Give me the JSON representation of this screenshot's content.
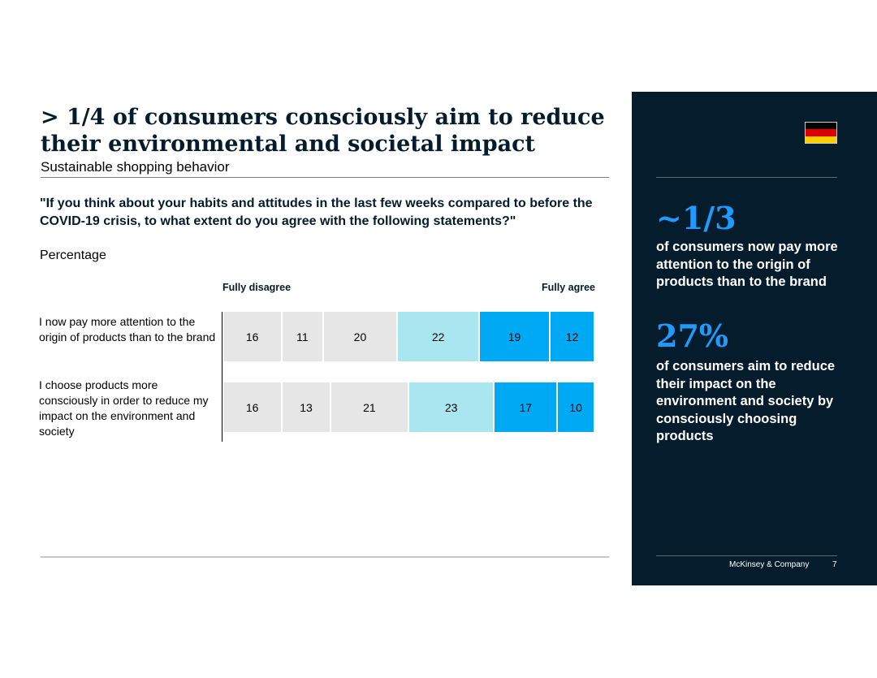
{
  "header": {
    "title": "> 1/4 of consumers consciously aim to reduce their environmental and societal impact",
    "subtitle": "Sustainable shopping behavior"
  },
  "question": "\"If you think about your habits and attitudes in the last few weeks compared to before the COVID-19 crisis, to what extent do you agree with the following statements?\"",
  "unit": "Percentage",
  "scale": {
    "left": "Fully disagree",
    "right": "Fully agree"
  },
  "chart_data": {
    "type": "bar",
    "orientation": "horizontal-stacked",
    "categories": [
      "I now pay more attention to the origin of products than to the brand",
      "I choose products more consciously in order to reduce my impact on the environment and society"
    ],
    "series": [
      {
        "values": [
          16,
          16
        ],
        "color": "#e6e6e6"
      },
      {
        "values": [
          11,
          13
        ],
        "color": "#e6e6e6"
      },
      {
        "values": [
          20,
          21
        ],
        "color": "#e6e6e6"
      },
      {
        "values": [
          22,
          23
        ],
        "color": "#aae6f0"
      },
      {
        "values": [
          19,
          17
        ],
        "color": "#00a9f4"
      },
      {
        "values": [
          12,
          10
        ],
        "color": "#00a9f4"
      }
    ]
  },
  "sidebar": {
    "flag_colors": [
      "#000000",
      "#dd0000",
      "#ffce00"
    ],
    "stat1": {
      "value": "~1/3",
      "text": "of consumers now pay more attention to the origin of products than to the brand"
    },
    "stat2": {
      "value": "27%",
      "text": "of consumers aim to reduce their impact on the environment and society by consciously choosing products"
    },
    "footer_company": "McKinsey & Company",
    "page_number": "7"
  }
}
